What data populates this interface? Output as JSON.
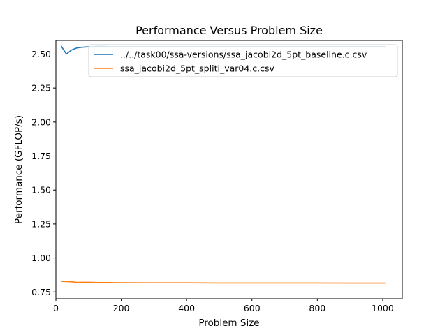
{
  "chart_data": {
    "type": "line",
    "title": "Performance Versus Problem Size",
    "xlabel": "Problem Size",
    "ylabel": "Performance (GFLOP/s)",
    "xlim": [
      0,
      1060
    ],
    "ylim": [
      0.7,
      2.6
    ],
    "xticks": [
      0,
      200,
      400,
      600,
      800,
      1000
    ],
    "yticks": [
      0.75,
      1.0,
      1.25,
      1.5,
      1.75,
      2.0,
      2.25,
      2.5
    ],
    "ytick_labels": [
      "0.75",
      "1.00",
      "1.25",
      "1.50",
      "1.75",
      "2.00",
      "2.25",
      "2.50"
    ],
    "grid": false,
    "legend_position": "top-right",
    "series": [
      {
        "name": "../../task00/ssa-versions/ssa_jacobi2d_5pt_baseline.c.csv",
        "color": "#1f77b4",
        "x": [
          16,
          32,
          48,
          64,
          80,
          96,
          112,
          128,
          144,
          160,
          200,
          300,
          400,
          500,
          600,
          700,
          800,
          900,
          1008
        ],
        "y": [
          2.56,
          2.5,
          2.53,
          2.545,
          2.55,
          2.553,
          2.555,
          2.557,
          2.558,
          2.555,
          2.555,
          2.555,
          2.555,
          2.555,
          2.555,
          2.555,
          2.555,
          2.555,
          2.555
        ]
      },
      {
        "name": "ssa_jacobi2d_5pt_spliti_var04.c.csv",
        "color": "#ff7f0e",
        "x": [
          16,
          32,
          48,
          64,
          80,
          96,
          112,
          128,
          160,
          200,
          300,
          400,
          500,
          600,
          700,
          800,
          900,
          1008
        ],
        "y": [
          0.828,
          0.826,
          0.825,
          0.82,
          0.821,
          0.821,
          0.82,
          0.819,
          0.819,
          0.818,
          0.817,
          0.817,
          0.816,
          0.816,
          0.816,
          0.816,
          0.815,
          0.815
        ]
      }
    ]
  }
}
